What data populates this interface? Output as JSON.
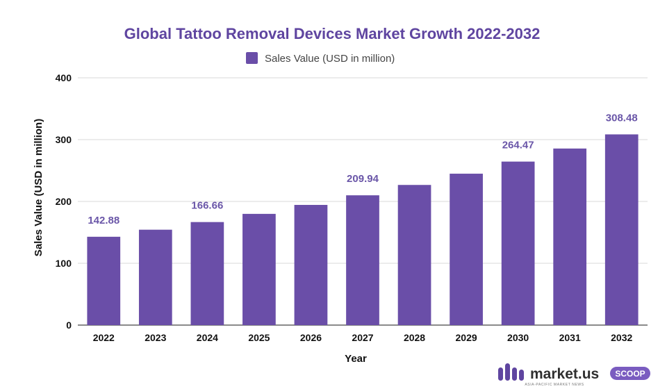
{
  "chart_data": {
    "type": "bar",
    "title": "Global Tattoo Removal Devices Market Growth 2022-2032",
    "xlabel": "Year",
    "ylabel": "Sales Value (USD in million)",
    "categories": [
      "2022",
      "2023",
      "2024",
      "2025",
      "2026",
      "2027",
      "2028",
      "2029",
      "2030",
      "2031",
      "2032"
    ],
    "series": [
      {
        "name": "Sales Value (USD in million)",
        "values": [
          142.88,
          154.3,
          166.66,
          179.9,
          194.4,
          209.94,
          226.7,
          244.9,
          264.47,
          285.6,
          308.48
        ]
      }
    ],
    "data_labels": [
      "142.88",
      "",
      "166.66",
      "",
      "",
      "209.94",
      "",
      "",
      "264.47",
      "",
      "308.48"
    ],
    "ylim": [
      0,
      400
    ],
    "yticks": [
      0,
      100,
      200,
      300,
      400
    ],
    "grid": true,
    "legend_position": "top-center",
    "colors": {
      "bar": "#6a4ea8",
      "title": "#5f45a0",
      "data_label": "#6a56a8",
      "grid": "#d9d9d9",
      "axis": "#444444"
    }
  },
  "branding": {
    "logo_text": "market.us",
    "logo_badge": "SCOOP",
    "logo_tagline": "ASIA-PACIFIC MARKET NEWS",
    "logo_icon": "market-us-logo-icon"
  }
}
